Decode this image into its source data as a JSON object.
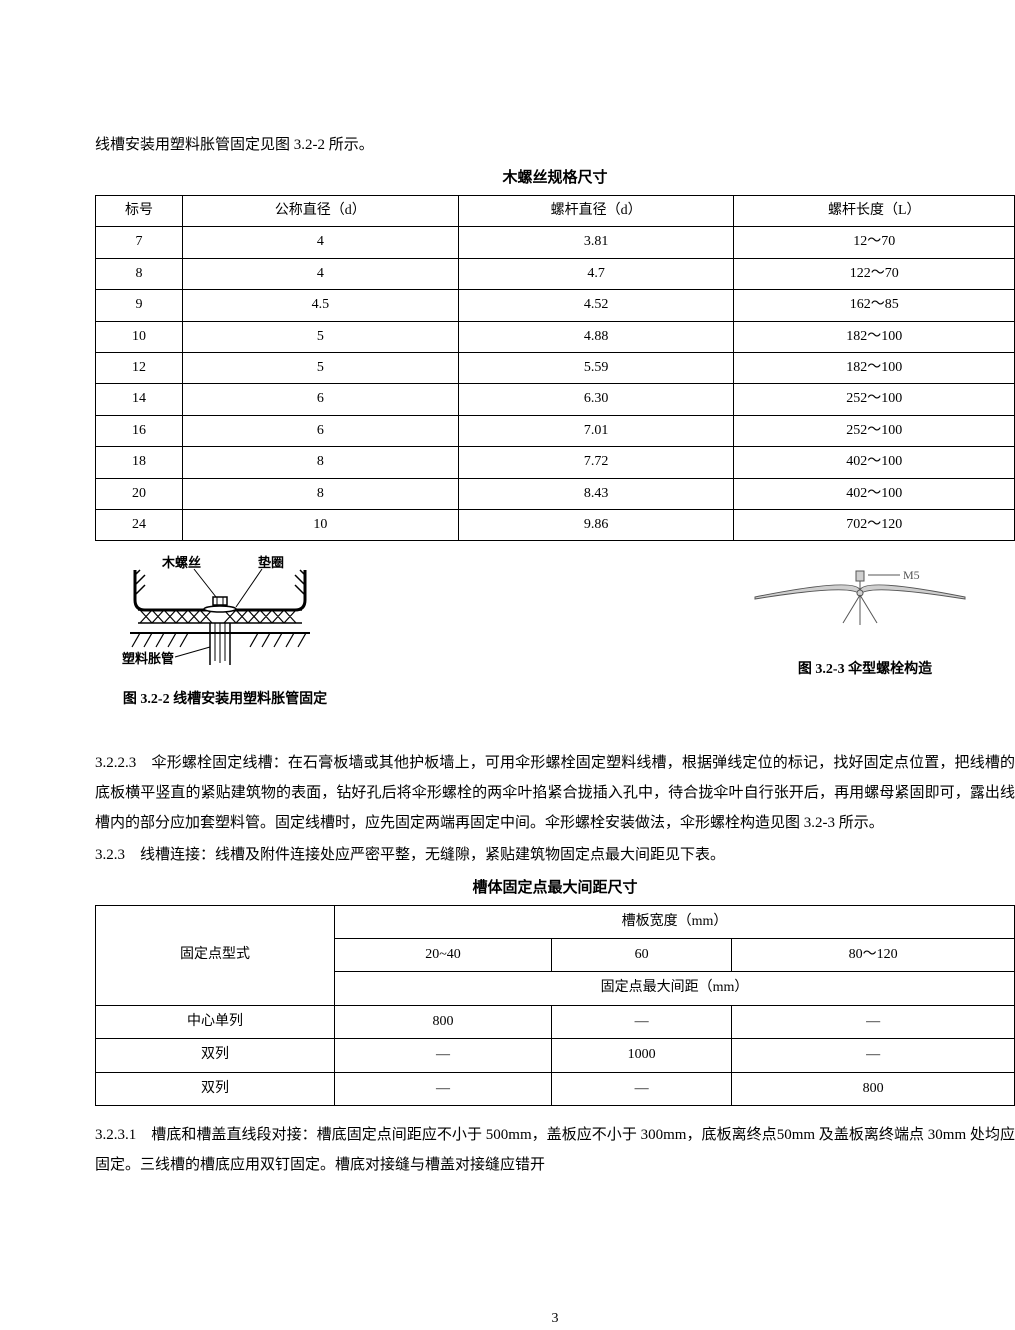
{
  "intro_para": "线槽安装用塑料胀管固定见图 3.2-2 所示。",
  "table1": {
    "caption": "木螺丝规格尺寸",
    "headers": [
      "标号",
      "公称直径（d）",
      "螺杆直径（d）",
      "螺杆长度（L）"
    ],
    "rows": [
      [
        "7",
        "4",
        "3.81",
        "12～70"
      ],
      [
        "8",
        "4",
        "4.7",
        "122～70"
      ],
      [
        "9",
        "4.5",
        "4.52",
        "162～85"
      ],
      [
        "10",
        "5",
        "4.88",
        "182～100"
      ],
      [
        "12",
        "5",
        "5.59",
        "182～100"
      ],
      [
        "14",
        "6",
        "6.30",
        "252～100"
      ],
      [
        "16",
        "6",
        "7.01",
        "252～100"
      ],
      [
        "18",
        "8",
        "7.72",
        "402～100"
      ],
      [
        "20",
        "8",
        "8.43",
        "402～100"
      ],
      [
        "24",
        "10",
        "9.86",
        "702～120"
      ]
    ]
  },
  "figures": {
    "left": {
      "labels": {
        "wood_screw": "木螺丝",
        "washer": "垫圈",
        "anchor": "塑料胀管"
      },
      "caption": "图 3.2-2 线槽安装用塑料胀管固定"
    },
    "right": {
      "labels": {
        "thread": "M5"
      },
      "caption": "图 3.2-3 伞型螺栓构造"
    }
  },
  "body": {
    "p1": "3.2.2.3　伞形螺栓固定线槽：在石膏板墙或其他护板墙上，可用伞形螺栓固定塑料线槽，根据弹线定位的标记，找好固定点位置，把线槽的底板横平竖直的紧贴建筑物的表面，钻好孔后将伞形螺栓的两伞叶掐紧合拢插入孔中，待合拢伞叶自行张开后，再用螺母紧固即可，露出线槽内的部分应加套塑料管。固定线槽时，应先固定两端再固定中间。伞形螺栓安装做法，伞形螺栓构造见图 3.2-3 所示。",
    "p2": "3.2.3　线槽连接：线槽及附件连接处应严密平整，无缝隙，紧贴建筑物固定点最大间距见下表。"
  },
  "table2": {
    "caption": "槽体固定点最大间距尺寸",
    "header_row1": "槽板宽度（mm）",
    "header_row1_left": "固定点型式",
    "header_row2": [
      "20~40",
      "60",
      "80～120"
    ],
    "header_row3": "固定点最大间距（mm）",
    "rows": [
      [
        "中心单列",
        "800",
        "—",
        "—"
      ],
      [
        "双列",
        "—",
        "1000",
        "—"
      ],
      [
        "双列",
        "—",
        "—",
        "800"
      ]
    ]
  },
  "tail_para": "3.2.3.1　槽底和槽盖直线段对接：槽底固定点间距应不小于 500mm，盖板应不小于 300mm，底板离终点50mm 及盖板离终端点 30mm 处均应固定。三线槽的槽底应用双钉固定。槽底对接缝与槽盖对接缝应错开",
  "page_num": "3"
}
